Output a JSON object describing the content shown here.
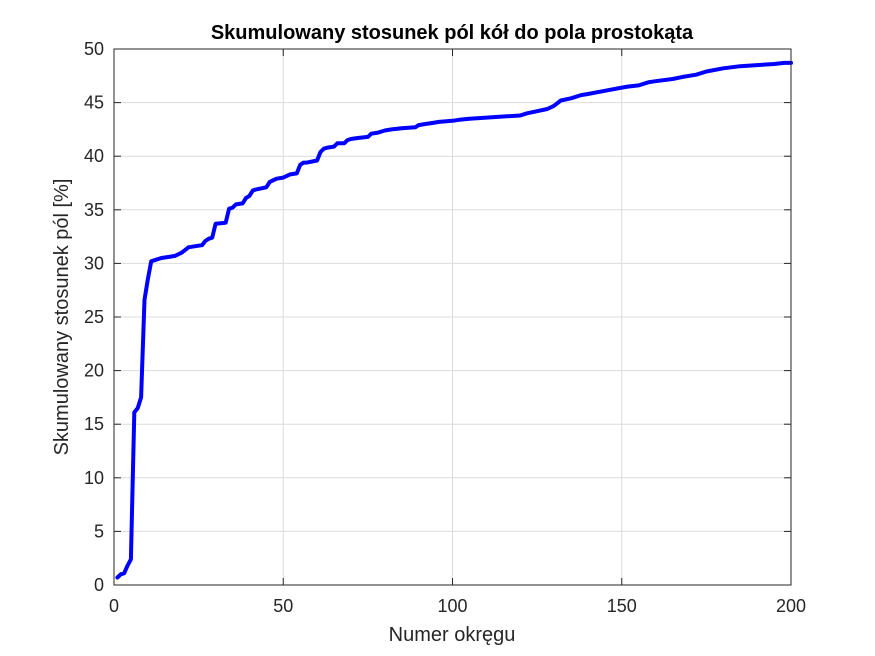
{
  "chart_data": {
    "type": "line",
    "title": "Skumulowany stosunek pól kół do pola prostokąta",
    "xlabel": "Numer okręgu",
    "ylabel": "Skumulowany stosunek pól [%]",
    "xlim": [
      0,
      200
    ],
    "ylim": [
      0,
      50
    ],
    "xticks": [
      0,
      50,
      100,
      150,
      200
    ],
    "yticks": [
      0,
      5,
      10,
      15,
      20,
      25,
      30,
      35,
      40,
      45,
      50
    ],
    "grid": true,
    "line_color": "#0000ff",
    "series": [
      {
        "x": [
          1,
          2,
          3,
          4,
          5,
          6,
          7,
          8,
          9,
          10,
          11,
          12,
          14,
          16,
          18,
          20,
          22,
          24,
          26,
          27,
          28,
          29,
          30,
          33,
          34,
          35,
          36,
          38,
          39,
          40,
          41,
          42,
          45,
          46,
          48,
          50,
          52,
          54,
          55,
          56,
          57,
          60,
          61,
          62,
          63,
          65,
          66,
          68,
          69,
          70,
          72,
          75,
          76,
          78,
          80,
          82,
          85,
          89,
          90,
          92,
          94,
          96,
          100,
          102,
          105,
          110,
          115,
          120,
          122,
          125,
          128,
          130,
          132,
          135,
          138,
          140,
          145,
          150,
          152,
          155,
          158,
          160,
          165,
          168,
          170,
          172,
          175,
          180,
          185,
          190,
          195,
          198,
          200
        ],
        "y": [
          0.7,
          1.0,
          1.1,
          1.8,
          2.4,
          16.1,
          16.5,
          17.5,
          26.6,
          28.5,
          30.2,
          30.3,
          30.5,
          30.6,
          30.7,
          31.0,
          31.5,
          31.6,
          31.7,
          32.1,
          32.3,
          32.4,
          33.7,
          33.8,
          35.1,
          35.2,
          35.5,
          35.6,
          36.1,
          36.3,
          36.8,
          36.9,
          37.1,
          37.6,
          37.9,
          38.0,
          38.3,
          38.4,
          39.2,
          39.4,
          39.4,
          39.6,
          40.4,
          40.7,
          40.8,
          40.9,
          41.2,
          41.2,
          41.5,
          41.6,
          41.7,
          41.8,
          42.1,
          42.2,
          42.4,
          42.5,
          42.6,
          42.7,
          42.9,
          43.0,
          43.1,
          43.2,
          43.3,
          43.4,
          43.5,
          43.6,
          43.7,
          43.8,
          44.0,
          44.2,
          44.4,
          44.7,
          45.2,
          45.4,
          45.7,
          45.8,
          46.1,
          46.4,
          46.5,
          46.6,
          46.9,
          47.0,
          47.2,
          47.4,
          47.5,
          47.6,
          47.9,
          48.2,
          48.4,
          48.5,
          48.6,
          48.7,
          48.7
        ]
      }
    ]
  }
}
